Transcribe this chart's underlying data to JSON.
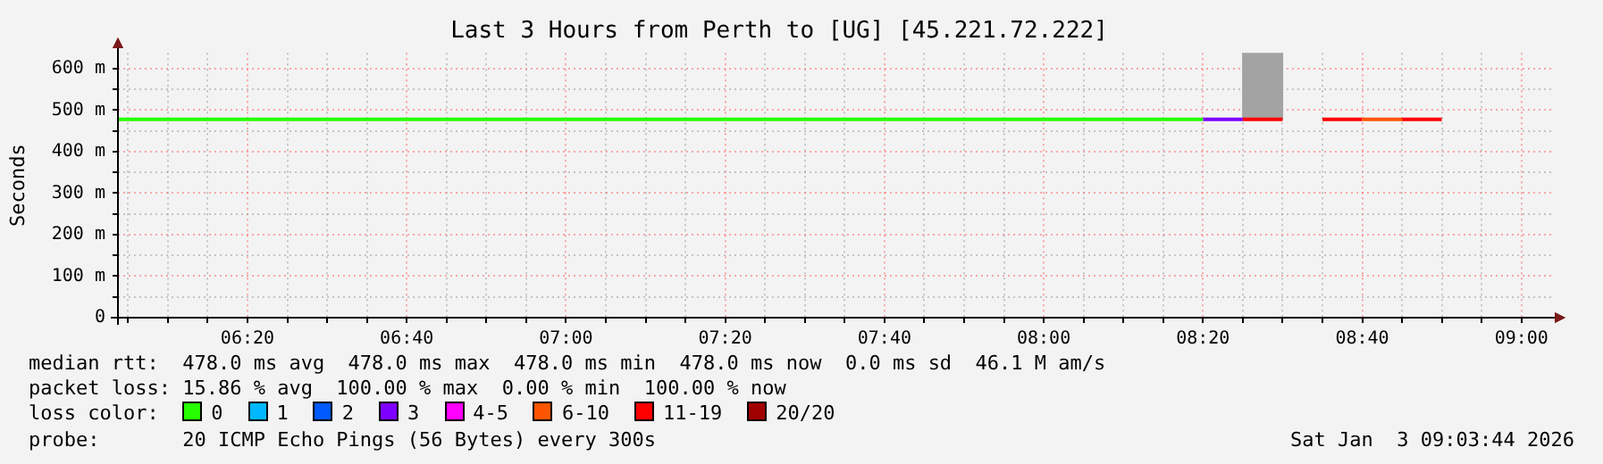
{
  "chart_data": {
    "type": "line",
    "title": "Last 3 Hours from Perth to [UG] [45.221.72.222]",
    "ylabel": "Seconds",
    "legend_title": "loss color:",
    "legend": "bottom",
    "grid": true,
    "marker": "none",
    "xlim": [
      6.0622,
      9.0622
    ],
    "xticks": [
      {
        "value": 6.0833,
        "label": null
      },
      {
        "value": 6.1667,
        "label": null
      },
      {
        "value": 6.25,
        "label": null
      },
      {
        "value": 6.3333,
        "label": "06:20"
      },
      {
        "value": 6.4167,
        "label": null
      },
      {
        "value": 6.5,
        "label": null
      },
      {
        "value": 6.5833,
        "label": null
      },
      {
        "value": 6.6667,
        "label": "06:40"
      },
      {
        "value": 6.75,
        "label": null
      },
      {
        "value": 6.8333,
        "label": null
      },
      {
        "value": 6.9167,
        "label": null
      },
      {
        "value": 7,
        "label": "07:00"
      },
      {
        "value": 7.0833,
        "label": null
      },
      {
        "value": 7.1667,
        "label": null
      },
      {
        "value": 7.25,
        "label": null
      },
      {
        "value": 7.3333,
        "label": "07:20"
      },
      {
        "value": 7.4167,
        "label": null
      },
      {
        "value": 7.5,
        "label": null
      },
      {
        "value": 7.5833,
        "label": null
      },
      {
        "value": 7.6667,
        "label": "07:40"
      },
      {
        "value": 7.75,
        "label": null
      },
      {
        "value": 7.8333,
        "label": null
      },
      {
        "value": 7.9167,
        "label": null
      },
      {
        "value": 8,
        "label": "08:00"
      },
      {
        "value": 8.0833,
        "label": null
      },
      {
        "value": 8.1667,
        "label": null
      },
      {
        "value": 8.25,
        "label": null
      },
      {
        "value": 8.3333,
        "label": "08:20"
      },
      {
        "value": 8.4167,
        "label": null
      },
      {
        "value": 8.5,
        "label": null
      },
      {
        "value": 8.5833,
        "label": null
      },
      {
        "value": 8.6667,
        "label": "08:40"
      },
      {
        "value": 8.75,
        "label": null
      },
      {
        "value": 8.8333,
        "label": null
      },
      {
        "value": 8.9167,
        "label": null
      },
      {
        "value": 9,
        "label": "09:00"
      }
    ],
    "ylim": [
      0,
      638
    ],
    "yticks": [
      0,
      {
        "value": 50,
        "label": null
      },
      {
        "value": 100,
        "label": "100 m"
      },
      {
        "value": 150,
        "label": null
      },
      {
        "value": 200,
        "label": "200 m"
      },
      {
        "value": 250,
        "label": null
      },
      {
        "value": 300,
        "label": "300 m"
      },
      {
        "value": 350,
        "label": null
      },
      {
        "value": 400,
        "label": "400 m"
      },
      {
        "value": 450,
        "label": null
      },
      {
        "value": 500,
        "label": "500 m"
      },
      {
        "value": 550,
        "label": null
      },
      {
        "value": 600,
        "label": "600 m"
      }
    ],
    "series": [
      {
        "type": "bar",
        "color": "#a3a3a3",
        "x": [
          8.4583
        ],
        "base": [
          478
        ],
        "values": [
          160
        ]
      },
      {
        "name": "0",
        "color": "#26ff00",
        "x": [
          6.0622,
          8.3333
        ],
        "values": [
          478,
          478
        ]
      },
      {
        "name": "1",
        "color": "#00b8ff"
      },
      {
        "name": "2",
        "color": "#0059ff"
      },
      {
        "name": "3",
        "color": "#7e00ff",
        "x": [
          8.3333,
          8.4167
        ],
        "values": [
          478,
          478
        ]
      },
      {
        "name": "4-5",
        "color": "#ff00ff"
      },
      {
        "name": "6-10",
        "color": "#ff5500",
        "x": [
          8.6667,
          8.75
        ],
        "values": [
          478,
          478
        ]
      },
      {
        "name": "11-19",
        "color": "#ff0000",
        "x": [
          8.4167,
          8.5,
          8.5417,
          8.5833,
          8.6667,
          8.7083,
          8.75,
          8.8333
        ],
        "values": [
          478,
          478,
          null,
          478,
          478,
          null,
          478,
          478
        ]
      },
      {
        "name": "20/20",
        "color": "#a10000"
      }
    ],
    "annotations": [
      "median rtt:  478.0 ms avg  478.0 ms max  478.0 ms min  478.0 ms now  0.0 ms sd  46.1 M am/s",
      "packet loss: 15.86 % avg  100.00 % max  0.00 % min  100.00 % now",
      "probe:       20 ICMP Echo Pings (56 Bytes) every 300s",
      "Sat Jan  3 09:03:44 2026"
    ]
  }
}
